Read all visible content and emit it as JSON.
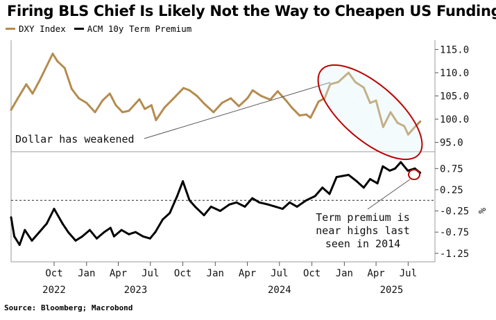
{
  "title": "Firing BLS Chief Is Likely Not the Way to Cheapen US Funding",
  "legend": [
    {
      "label": "DXY Index",
      "color": "#b48c4e"
    },
    {
      "label": "ACM 10y Term Premium",
      "color": "#000000"
    }
  ],
  "source": "Source: Bloomberg; Macrobond",
  "annotations": {
    "dollar": "Dollar has weakened",
    "term_line1": "Term premium is",
    "term_line2": "near highs last",
    "term_line3": "seen in 2014"
  },
  "axis_unit": "%",
  "chart_data": [
    {
      "type": "line",
      "series": [
        {
          "name": "DXY Index",
          "color": "#b48c4e",
          "x": [
            "2022-06-01",
            "2022-06-20",
            "2022-07-14",
            "2022-08-01",
            "2022-08-22",
            "2022-09-27",
            "2022-10-10",
            "2022-10-31",
            "2022-11-20",
            "2022-12-10",
            "2023-01-01",
            "2023-01-25",
            "2023-02-15",
            "2023-03-08",
            "2023-03-25",
            "2023-04-13",
            "2023-05-01",
            "2023-05-31",
            "2023-06-15",
            "2023-07-04",
            "2023-07-17",
            "2023-08-10",
            "2023-09-05",
            "2023-10-03",
            "2023-10-20",
            "2023-11-10",
            "2023-12-01",
            "2023-12-27",
            "2024-01-20",
            "2024-02-14",
            "2024-03-08",
            "2024-04-01",
            "2024-04-16",
            "2024-05-10",
            "2024-06-05",
            "2024-06-26",
            "2024-07-20",
            "2024-08-05",
            "2024-08-27",
            "2024-09-15",
            "2024-09-27",
            "2024-10-20",
            "2024-11-06",
            "2024-11-22",
            "2024-12-15",
            "2025-01-13",
            "2025-02-01",
            "2025-02-25",
            "2025-03-15",
            "2025-04-01",
            "2025-04-21",
            "2025-05-12",
            "2025-06-01",
            "2025-06-20",
            "2025-07-01",
            "2025-07-20",
            "2025-08-04"
          ],
          "values": [
            102.0,
            104.5,
            107.5,
            105.5,
            108.5,
            114.1,
            112.5,
            111.0,
            106.5,
            104.5,
            103.5,
            101.5,
            104.0,
            105.5,
            103.0,
            101.5,
            101.8,
            104.3,
            102.2,
            103.0,
            99.8,
            102.5,
            104.5,
            106.7,
            106.2,
            105.0,
            103.3,
            101.5,
            103.5,
            104.5,
            102.8,
            104.5,
            106.2,
            105.0,
            104.2,
            106.0,
            104.0,
            102.5,
            100.8,
            101.0,
            100.3,
            103.8,
            104.5,
            107.5,
            108.0,
            110.0,
            108.0,
            106.8,
            103.5,
            104.0,
            98.3,
            101.5,
            99.2,
            98.5,
            96.7,
            98.3,
            99.5
          ]
        }
      ],
      "ylim": [
        93,
        117
      ],
      "yticks": [
        95.0,
        100.0,
        105.0,
        110.0,
        115.0
      ]
    },
    {
      "type": "line",
      "series": [
        {
          "name": "ACM 10y Term Premium",
          "color": "#000000",
          "x": [
            "2022-06-01",
            "2022-06-10",
            "2022-06-25",
            "2022-07-10",
            "2022-07-30",
            "2022-08-20",
            "2022-09-10",
            "2022-10-01",
            "2022-10-25",
            "2022-11-10",
            "2022-12-01",
            "2022-12-20",
            "2023-01-10",
            "2023-01-30",
            "2023-02-20",
            "2023-03-10",
            "2023-03-20",
            "2023-04-10",
            "2023-05-01",
            "2023-05-20",
            "2023-06-10",
            "2023-06-30",
            "2023-07-15",
            "2023-08-05",
            "2023-08-25",
            "2023-09-15",
            "2023-10-01",
            "2023-10-20",
            "2023-11-05",
            "2023-11-30",
            "2023-12-20",
            "2024-01-15",
            "2024-02-10",
            "2024-03-01",
            "2024-03-25",
            "2024-04-15",
            "2024-05-05",
            "2024-05-30",
            "2024-06-20",
            "2024-07-10",
            "2024-07-30",
            "2024-08-20",
            "2024-09-15",
            "2024-10-10",
            "2024-10-31",
            "2024-11-20",
            "2024-12-10",
            "2025-01-13",
            "2025-02-05",
            "2025-02-25",
            "2025-03-15",
            "2025-04-05",
            "2025-04-20",
            "2025-05-10",
            "2025-05-25",
            "2025-06-10",
            "2025-06-30",
            "2025-07-20",
            "2025-08-04"
          ],
          "values": [
            -0.4,
            -0.85,
            -1.05,
            -0.7,
            -0.95,
            -0.75,
            -0.55,
            -0.2,
            -0.55,
            -0.75,
            -0.95,
            -0.85,
            -0.7,
            -0.9,
            -0.75,
            -0.65,
            -0.85,
            -0.7,
            -0.8,
            -0.75,
            -0.85,
            -0.9,
            -0.75,
            -0.45,
            -0.3,
            0.1,
            0.45,
            0.0,
            -0.15,
            -0.35,
            -0.15,
            -0.25,
            -0.1,
            -0.05,
            -0.15,
            0.05,
            -0.05,
            -0.1,
            -0.15,
            -0.2,
            -0.05,
            -0.15,
            0.0,
            0.1,
            0.3,
            0.15,
            0.55,
            0.6,
            0.45,
            0.3,
            0.5,
            0.4,
            0.8,
            0.7,
            0.75,
            0.9,
            0.7,
            0.75,
            0.65
          ]
        }
      ],
      "ylim": [
        -1.45,
        1.0
      ],
      "yticks": [
        -1.25,
        -0.75,
        -0.25,
        0.25,
        0.75
      ],
      "zero_line": true
    }
  ],
  "x_axis": {
    "months": [
      {
        "label": "Oct",
        "date": "2022-10-01"
      },
      {
        "label": "Jan",
        "date": "2023-01-01"
      },
      {
        "label": "Apr",
        "date": "2023-04-01"
      },
      {
        "label": "Jul",
        "date": "2023-07-01"
      },
      {
        "label": "Oct",
        "date": "2023-10-01"
      },
      {
        "label": "Jan",
        "date": "2024-01-01"
      },
      {
        "label": "Apr",
        "date": "2024-04-01"
      },
      {
        "label": "Jul",
        "date": "2024-07-01"
      },
      {
        "label": "Oct",
        "date": "2024-10-01"
      },
      {
        "label": "Jan",
        "date": "2025-01-01"
      },
      {
        "label": "Apr",
        "date": "2025-04-01"
      },
      {
        "label": "Jul",
        "date": "2025-07-01"
      }
    ],
    "years": [
      {
        "label": "2022",
        "date": "2022-10-01"
      },
      {
        "label": "2023",
        "date": "2023-05-20"
      },
      {
        "label": "2024",
        "date": "2024-07-01"
      },
      {
        "label": "2025",
        "date": "2025-05-15"
      }
    ],
    "range": [
      "2022-06-01",
      "2025-09-15"
    ]
  }
}
